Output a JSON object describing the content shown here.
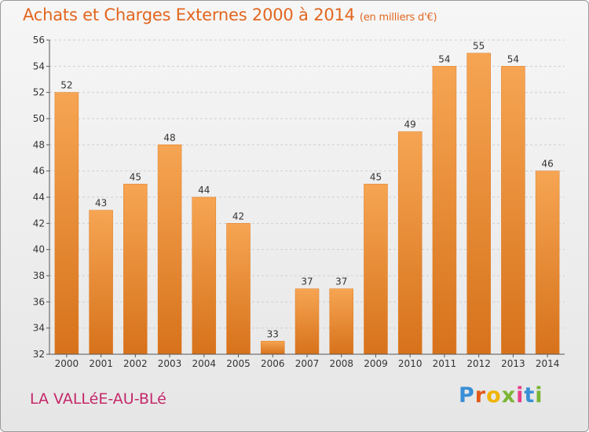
{
  "header": {
    "title": "Achats et Charges Externes 2000 à 2014",
    "unit": "(en milliers d'€)"
  },
  "commune": "LA VALLéE-AU-BLé",
  "logo": {
    "letters": [
      "P",
      "r",
      "o",
      "x",
      "i",
      "t",
      "i"
    ],
    "colors": [
      "#3a8fd6",
      "#e25a1b",
      "#f0b400",
      "#7ab534",
      "#e83f8a",
      "#3a8fd6",
      "#7ab534"
    ]
  },
  "colors": {
    "bar": "#f08a2c",
    "bar_light": "#f6a553",
    "bar_dark": "#d7721b",
    "title": "#e2661e",
    "commune": "#c4286a"
  },
  "chart_data": {
    "type": "bar",
    "title": "Achats et Charges Externes 2000 à 2014",
    "xlabel": "",
    "ylabel": "",
    "categories": [
      "2000",
      "2001",
      "2002",
      "2003",
      "2004",
      "2005",
      "2006",
      "2007",
      "2008",
      "2009",
      "2010",
      "2011",
      "2012",
      "2013",
      "2014"
    ],
    "values": [
      52,
      43,
      45,
      48,
      44,
      42,
      33,
      37,
      37,
      45,
      49,
      54,
      55,
      54,
      46
    ],
    "ylim": [
      32,
      56
    ],
    "yticks": [
      32,
      34,
      36,
      38,
      40,
      42,
      44,
      46,
      48,
      50,
      52,
      54,
      56
    ],
    "grid": true,
    "legend": "none"
  }
}
